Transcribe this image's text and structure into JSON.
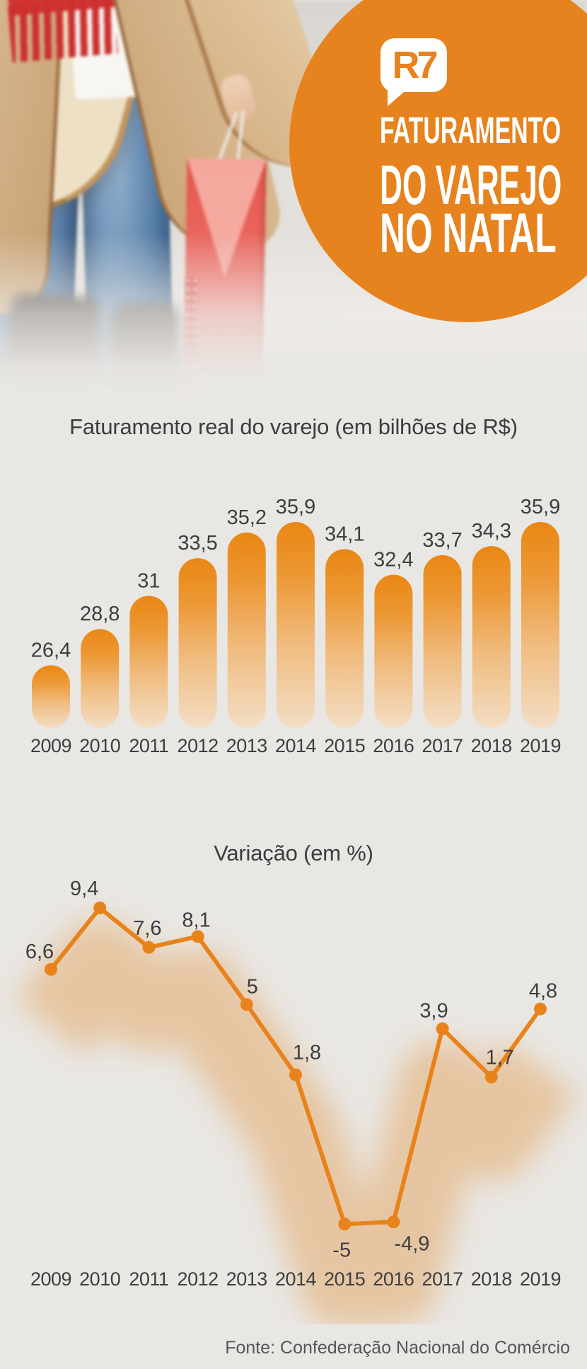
{
  "brand": {
    "logo": "R7"
  },
  "hero": {
    "title_lines": [
      "FATURAMENTO",
      "DO VAREJO",
      "NO NATAL"
    ]
  },
  "colors": {
    "accent_orange": "#E6831E",
    "line_orange": "#E8831C",
    "bar_gradient_top": "#E98714",
    "bar_gradient_bottom": "#F3DEC5",
    "background": "#E9E7E4",
    "text_dark": "#3E3E40",
    "footer_gray": "#55565A"
  },
  "chart_data": [
    {
      "type": "bar",
      "title": "Faturamento real do varejo (em bilhões de R$)",
      "categories": [
        "2009",
        "2010",
        "2011",
        "2012",
        "2013",
        "2014",
        "2015",
        "2016",
        "2017",
        "2018",
        "2019"
      ],
      "values": [
        26.4,
        28.8,
        31,
        33.5,
        35.2,
        35.9,
        34.1,
        32.4,
        33.7,
        34.3,
        35.9
      ],
      "value_labels": [
        "26,4",
        "28,8",
        "31",
        "33,5",
        "35,2",
        "35,9",
        "34,1",
        "32,4",
        "33,7",
        "34,3",
        "35,9"
      ],
      "ylabel": "bilhões de R$",
      "xlabel": "",
      "ylim": [
        22,
        36
      ],
      "grid": false,
      "legend": null
    },
    {
      "type": "line",
      "title": "Variação (em %)",
      "categories": [
        "2009",
        "2010",
        "2011",
        "2012",
        "2013",
        "2014",
        "2015",
        "2016",
        "2017",
        "2018",
        "2019"
      ],
      "values": [
        6.6,
        9.4,
        7.6,
        8.1,
        5,
        1.8,
        -5,
        -4.9,
        3.9,
        1.7,
        4.8
      ],
      "value_labels": [
        "6,6",
        "9,4",
        "7,6",
        "8,1",
        "5",
        "1,8",
        "-5",
        "-4,9",
        "3,9",
        "1,7",
        "4,8"
      ],
      "ylabel": "%",
      "xlabel": "",
      "ylim": [
        -6,
        10
      ],
      "grid": false,
      "legend": null
    }
  ],
  "footer": {
    "source": "Fonte: Confederação Nacional do Comércio"
  }
}
